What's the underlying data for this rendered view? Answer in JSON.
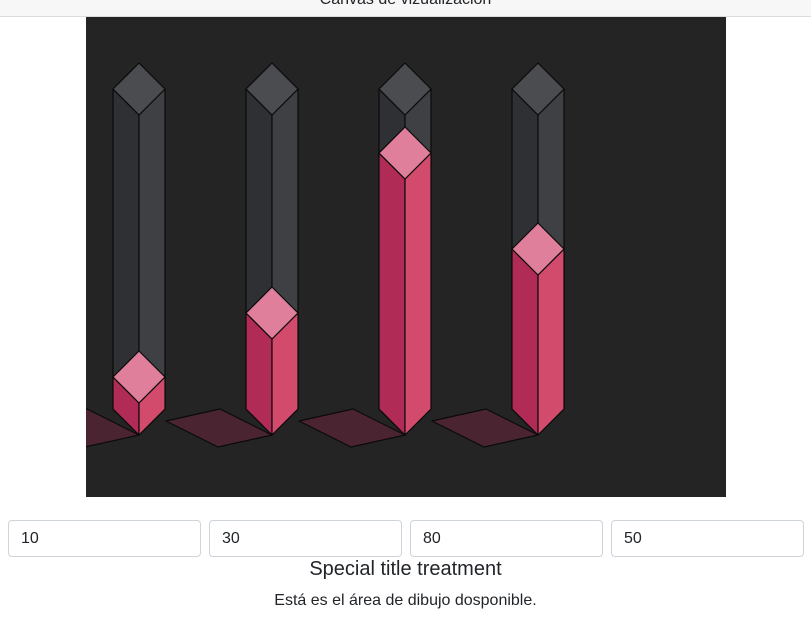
{
  "header": {
    "title": "Canvas de vizualización"
  },
  "inputs": [
    {
      "value": "10"
    },
    {
      "value": "30"
    },
    {
      "value": "80"
    },
    {
      "value": "50"
    }
  ],
  "card": {
    "title": "Special title treatment",
    "text": "Está es el área de dibujo dosponible."
  },
  "chart_data": {
    "type": "bar",
    "style": "isometric-3d",
    "categories": [
      "",
      "",
      "",
      ""
    ],
    "values": [
      10,
      30,
      80,
      50
    ],
    "ylim": [
      0,
      100
    ],
    "colors": {
      "background": "#242424",
      "bar_left": "#b02c56",
      "bar_right": "#d34b6c",
      "bar_top": "#e07f9b",
      "track_left": "#2f3033",
      "track_right": "#3f4043",
      "track_top": "#4b4c50",
      "shadow": "#4a2531",
      "outline": "#0a0a0a"
    }
  }
}
